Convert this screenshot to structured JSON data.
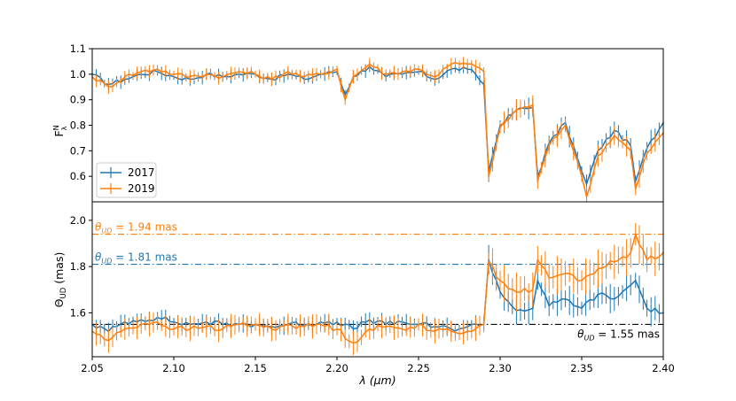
{
  "colors": {
    "s2017": "#1f77b4",
    "s2019": "#ff7f0e",
    "ref": "#000000"
  },
  "chart_data": [
    {
      "type": "line",
      "panel": "top",
      "ylabel": "F",
      "ylabel_sup": "N",
      "ylabel_sub": "λ",
      "xlim": [
        2.05,
        2.4
      ],
      "ylim": [
        0.5,
        1.1
      ],
      "yticks": [
        0.6,
        0.7,
        0.8,
        0.9,
        1.0,
        1.1
      ],
      "ytick_labels": [
        "0.6",
        "0.7",
        "0.8",
        "0.9",
        "1.0",
        "1.1"
      ],
      "legend": {
        "position": "lower-left",
        "entries": [
          "2017",
          "2019"
        ]
      },
      "series": [
        {
          "name": "2017",
          "color": "#1f77b4",
          "x": [
            2.05,
            2.06,
            2.07,
            2.08,
            2.09,
            2.1,
            2.11,
            2.12,
            2.13,
            2.14,
            2.15,
            2.16,
            2.17,
            2.18,
            2.19,
            2.2,
            2.205,
            2.21,
            2.22,
            2.23,
            2.24,
            2.25,
            2.26,
            2.27,
            2.28,
            2.285,
            2.29,
            2.293,
            2.3,
            2.31,
            2.32,
            2.323,
            2.33,
            2.34,
            2.35,
            2.353,
            2.36,
            2.37,
            2.38,
            2.383,
            2.39,
            2.4
          ],
          "y": [
            1.0,
            0.96,
            0.98,
            1.0,
            1.01,
            0.99,
            0.98,
            1.0,
            0.99,
            1.0,
            1.0,
            0.98,
            1.0,
            0.98,
            1.0,
            1.01,
            0.92,
            0.99,
            1.03,
            0.99,
            1.0,
            1.01,
            0.98,
            1.02,
            1.02,
            1.0,
            0.96,
            0.62,
            0.8,
            0.86,
            0.87,
            0.6,
            0.73,
            0.81,
            0.62,
            0.57,
            0.7,
            0.78,
            0.72,
            0.58,
            0.71,
            0.81
          ],
          "yerr": 0.02
        },
        {
          "name": "2019",
          "color": "#ff7f0e",
          "x": [
            2.05,
            2.06,
            2.07,
            2.08,
            2.09,
            2.1,
            2.11,
            2.12,
            2.13,
            2.14,
            2.15,
            2.16,
            2.17,
            2.18,
            2.19,
            2.2,
            2.205,
            2.21,
            2.22,
            2.23,
            2.24,
            2.25,
            2.26,
            2.27,
            2.28,
            2.285,
            2.29,
            2.293,
            2.3,
            2.31,
            2.32,
            2.323,
            2.33,
            2.34,
            2.35,
            2.353,
            2.36,
            2.37,
            2.38,
            2.383,
            2.39,
            2.4
          ],
          "y": [
            0.99,
            0.95,
            0.99,
            1.01,
            1.02,
            1.0,
            0.99,
            1.0,
            0.99,
            1.01,
            1.0,
            0.98,
            1.01,
            0.99,
            1.0,
            1.02,
            0.9,
            0.99,
            1.04,
            1.0,
            1.01,
            1.02,
            0.99,
            1.04,
            1.04,
            1.03,
            1.01,
            0.6,
            0.79,
            0.86,
            0.88,
            0.58,
            0.72,
            0.8,
            0.6,
            0.52,
            0.68,
            0.76,
            0.7,
            0.55,
            0.69,
            0.77
          ],
          "yerr": 0.02
        }
      ]
    },
    {
      "type": "line",
      "panel": "bottom",
      "xlabel": "λ (μm)",
      "ylabel": "Θ_UD (mas)",
      "ylabel_main": "Θ",
      "ylabel_sub": "UD",
      "ylabel_unit": " (mas)",
      "xlim": [
        2.05,
        2.4
      ],
      "ylim": [
        1.41,
        2.08
      ],
      "xticks": [
        2.05,
        2.1,
        2.15,
        2.2,
        2.25,
        2.3,
        2.35,
        2.4
      ],
      "xtick_labels": [
        "2.05",
        "2.10",
        "2.15",
        "2.20",
        "2.25",
        "2.30",
        "2.35",
        "2.40"
      ],
      "yticks": [
        1.6,
        1.8,
        2.0
      ],
      "ytick_labels": [
        "1.6",
        "1.8",
        "2.0"
      ],
      "series": [
        {
          "name": "2017",
          "color": "#1f77b4",
          "x": [
            2.05,
            2.06,
            2.07,
            2.08,
            2.09,
            2.1,
            2.11,
            2.12,
            2.13,
            2.14,
            2.15,
            2.16,
            2.17,
            2.18,
            2.19,
            2.2,
            2.21,
            2.22,
            2.23,
            2.24,
            2.25,
            2.26,
            2.27,
            2.28,
            2.29,
            2.293,
            2.3,
            2.31,
            2.32,
            2.323,
            2.33,
            2.34,
            2.35,
            2.36,
            2.37,
            2.38,
            2.383,
            2.39,
            2.4
          ],
          "y": [
            1.55,
            1.52,
            1.56,
            1.57,
            1.58,
            1.56,
            1.55,
            1.56,
            1.55,
            1.55,
            1.55,
            1.54,
            1.55,
            1.55,
            1.56,
            1.56,
            1.53,
            1.57,
            1.55,
            1.56,
            1.55,
            1.54,
            1.53,
            1.54,
            1.55,
            1.83,
            1.69,
            1.61,
            1.62,
            1.74,
            1.63,
            1.66,
            1.62,
            1.68,
            1.66,
            1.72,
            1.74,
            1.62,
            1.6
          ],
          "yerr": 0.03
        },
        {
          "name": "2019",
          "color": "#ff7f0e",
          "x": [
            2.05,
            2.06,
            2.07,
            2.08,
            2.09,
            2.1,
            2.11,
            2.12,
            2.13,
            2.14,
            2.15,
            2.16,
            2.17,
            2.18,
            2.19,
            2.2,
            2.21,
            2.22,
            2.23,
            2.24,
            2.25,
            2.26,
            2.27,
            2.28,
            2.29,
            2.293,
            2.3,
            2.31,
            2.32,
            2.323,
            2.33,
            2.34,
            2.35,
            2.36,
            2.37,
            2.38,
            2.383,
            2.39,
            2.4
          ],
          "y": [
            1.52,
            1.48,
            1.53,
            1.55,
            1.56,
            1.53,
            1.53,
            1.54,
            1.53,
            1.55,
            1.55,
            1.53,
            1.55,
            1.54,
            1.55,
            1.53,
            1.47,
            1.53,
            1.54,
            1.53,
            1.55,
            1.52,
            1.52,
            1.52,
            1.55,
            1.82,
            1.74,
            1.69,
            1.7,
            1.83,
            1.75,
            1.77,
            1.74,
            1.79,
            1.82,
            1.86,
            1.94,
            1.83,
            1.86
          ],
          "yerr": 0.04
        }
      ],
      "reference_lines": [
        {
          "value": 1.94,
          "color": "#ff7f0e",
          "style": "dashdot",
          "label": "θ_UD = 1.94 mas",
          "label_main": "θ",
          "label_sub": "UD",
          "label_rest": " = 1.94 mas",
          "label_position": "left"
        },
        {
          "value": 1.81,
          "color": "#1f77b4",
          "style": "dashdot",
          "label": "θ_UD = 1.81 mas",
          "label_main": "θ",
          "label_sub": "UD",
          "label_rest": " = 1.81 mas",
          "label_position": "left"
        },
        {
          "value": 1.55,
          "color": "#000000",
          "style": "dashdot",
          "label": "θ_UD =  1.55 mas",
          "label_main": "θ",
          "label_sub": "UD",
          "label_rest": " =  1.55 mas",
          "label_position": "right"
        }
      ]
    }
  ]
}
